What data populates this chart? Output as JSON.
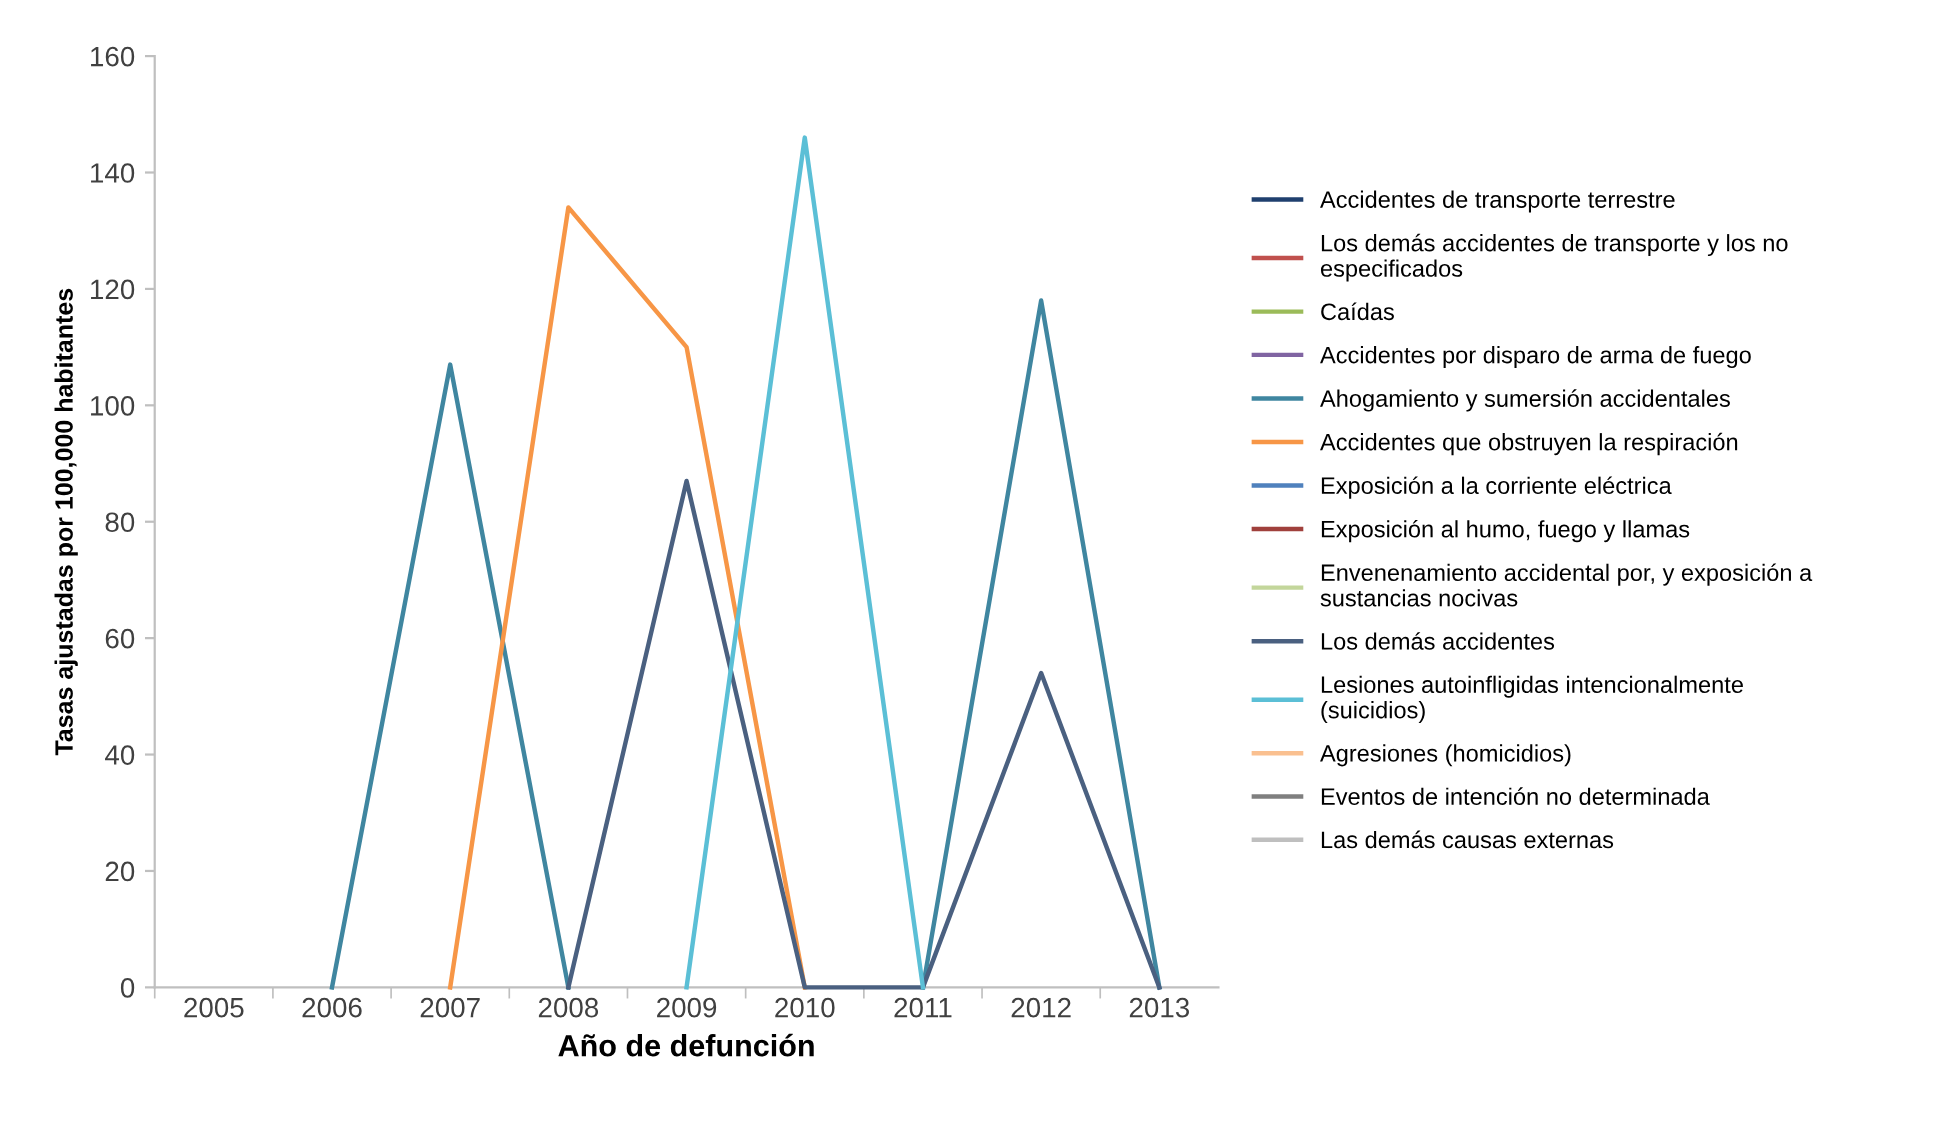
{
  "chart_data": {
    "type": "line",
    "xlabel": "Año de defunción",
    "ylabel": "Tasas ajustadas por 100,000 habitantes",
    "categories": [
      "2005",
      "2006",
      "2007",
      "2008",
      "2009",
      "2010",
      "2011",
      "2012",
      "2013"
    ],
    "ylim": [
      0,
      160
    ],
    "yticks": [
      0,
      20,
      40,
      60,
      80,
      100,
      120,
      140,
      160
    ],
    "grid": false,
    "legend": "right",
    "marker": "none",
    "line_style": "solid",
    "series": [
      {
        "name": "Accidentes de transporte terrestre",
        "color": "#1f3f6e",
        "values": [
          null,
          null,
          null,
          null,
          null,
          null,
          null,
          null,
          null
        ]
      },
      {
        "name": "Los demás accidentes de transporte y los no especificados",
        "color": "#c0504d",
        "values": [
          null,
          null,
          null,
          null,
          null,
          null,
          null,
          null,
          null
        ]
      },
      {
        "name": "Caídas",
        "color": "#9bbb59",
        "values": [
          null,
          null,
          null,
          null,
          null,
          null,
          null,
          null,
          null
        ]
      },
      {
        "name": "Accidentes por disparo de arma de fuego",
        "color": "#8064a2",
        "values": [
          null,
          null,
          null,
          null,
          null,
          null,
          null,
          null,
          null
        ]
      },
      {
        "name": "Ahogamiento y sumersión accidentales",
        "color": "#3f86a0",
        "values": [
          null,
          0,
          107,
          0,
          null,
          null,
          0,
          118,
          0
        ]
      },
      {
        "name": "Accidentes que obstruyen la respiración",
        "color": "#f79646",
        "values": [
          null,
          null,
          0,
          134,
          110,
          0,
          null,
          null,
          null
        ]
      },
      {
        "name": "Exposición a la corriente eléctrica",
        "color": "#4f81bd",
        "values": [
          null,
          null,
          null,
          null,
          null,
          null,
          null,
          null,
          null
        ]
      },
      {
        "name": "Exposición al humo, fuego y llamas",
        "color": "#a0403c",
        "values": [
          null,
          null,
          null,
          null,
          null,
          null,
          null,
          null,
          null
        ]
      },
      {
        "name": "Envenenamiento accidental por, y exposición a sustancias nocivas",
        "color": "#c3d69b",
        "values": [
          null,
          null,
          null,
          null,
          null,
          null,
          null,
          null,
          null
        ]
      },
      {
        "name": "Los demás accidentes",
        "color": "#4a6080",
        "values": [
          null,
          null,
          null,
          0,
          87,
          0,
          0,
          54,
          0
        ]
      },
      {
        "name": "Lesiones autoinfligidas intencionalmente (suicidios)",
        "color": "#5bbfd6",
        "values": [
          null,
          null,
          null,
          null,
          0,
          146,
          0,
          null,
          null
        ]
      },
      {
        "name": "Agresiones (homicidios)",
        "color": "#fac090",
        "values": [
          null,
          null,
          null,
          null,
          null,
          null,
          null,
          null,
          null
        ]
      },
      {
        "name": "Eventos de intención no determinada",
        "color": "#7f7f7f",
        "values": [
          null,
          null,
          null,
          null,
          null,
          null,
          null,
          null,
          null
        ]
      },
      {
        "name": "Las demás causas externas",
        "color": "#bfbfbf",
        "values": [
          null,
          null,
          null,
          null,
          null,
          null,
          null,
          null,
          null
        ]
      }
    ]
  }
}
